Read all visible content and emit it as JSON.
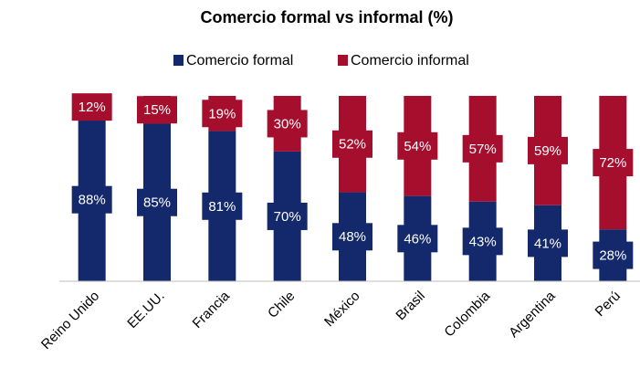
{
  "chart_data": {
    "type": "stacked_bar",
    "title": "Comercio formal vs informal (%)",
    "categories": [
      "Reino Unido",
      "EE.UU.",
      "Francia",
      "Chile",
      "México",
      "Brasil",
      "Colombia",
      "Argentina",
      "Perú"
    ],
    "series": [
      {
        "name": "Comercio formal",
        "color": "#14296b",
        "values": [
          88,
          85,
          81,
          70,
          48,
          46,
          43,
          41,
          28
        ],
        "value_labels": [
          "88%",
          "85%",
          "81%",
          "70%",
          "48%",
          "46%",
          "43%",
          "41%",
          "28%"
        ]
      },
      {
        "name": "Comercio informal",
        "color": "#a50f2d",
        "values": [
          12,
          15,
          19,
          30,
          52,
          54,
          57,
          59,
          72
        ],
        "value_labels": [
          "12%",
          "15%",
          "19%",
          "30%",
          "52%",
          "54%",
          "57%",
          "59%",
          "72%"
        ]
      }
    ],
    "ylim": [
      0,
      100
    ],
    "legend": "top"
  }
}
